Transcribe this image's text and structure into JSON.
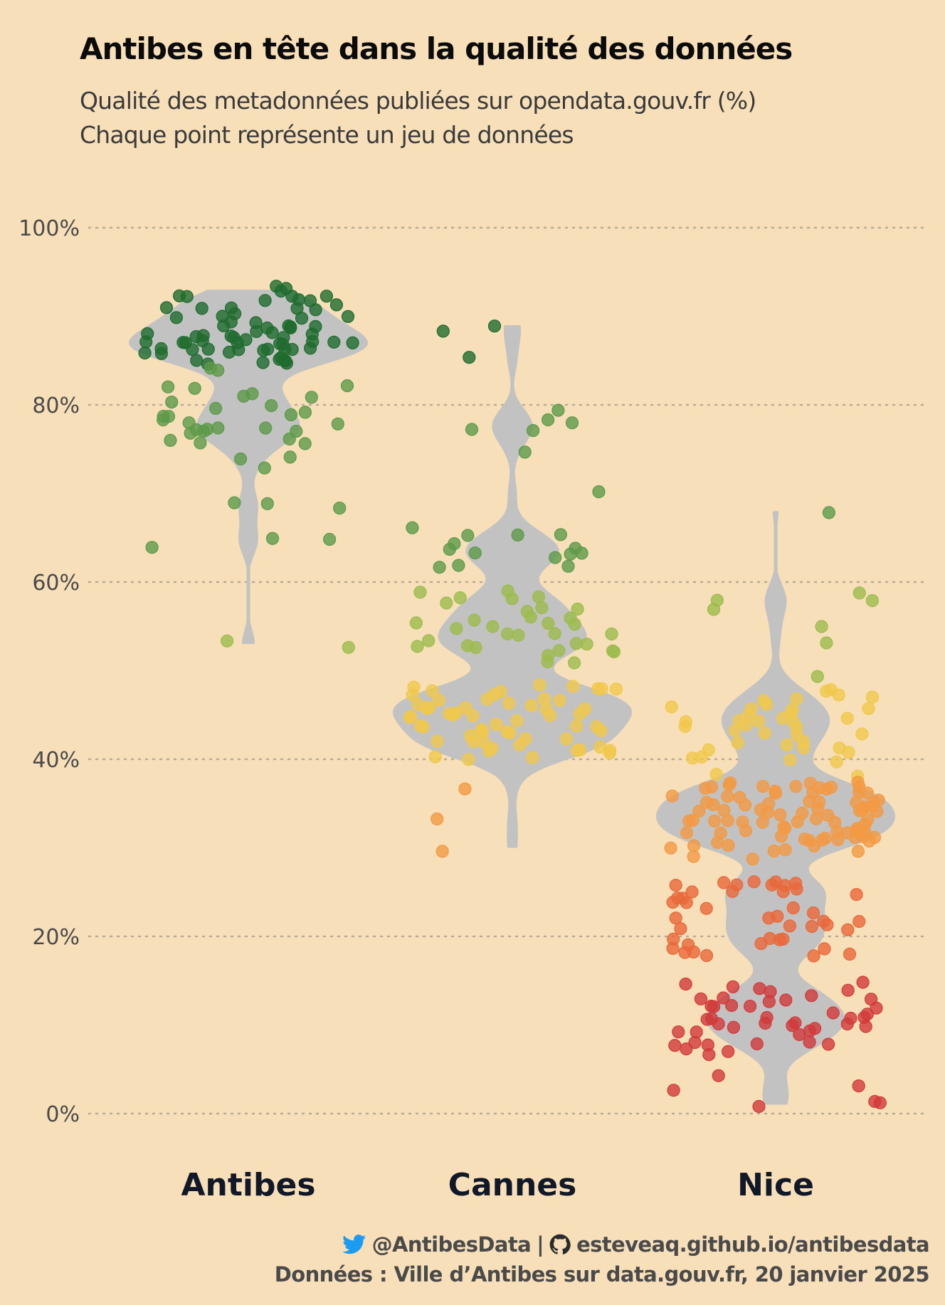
{
  "title": "Antibes en tête dans la qualité des données",
  "subtitle_line1": "Qualité des metadonnées publiées sur opendata.gouv.fr (%)",
  "subtitle_line2": "Chaque point représente un jeu de données",
  "footer": {
    "twitter_handle": "@AntibesData",
    "separator": "|",
    "github_url": "esteveaq.github.io/antibesdata",
    "source": "Données : Ville d’Antibes sur data.gouv.fr, 20 janvier 2025"
  },
  "colors": {
    "background": "#f7dfb9",
    "violin": "#c2c2c2",
    "grid": "#b8aa96",
    "dark_green": "#1f6b2e",
    "green": "#5c9a48",
    "yellow_green": "#9cbc4c",
    "yellow": "#f0c84c",
    "orange": "#f29a44",
    "red_orange": "#e8683a",
    "red": "#d13a3a",
    "twitter": "#1d9bf0"
  },
  "chart_data": {
    "type": "scatter",
    "ylim": [
      0,
      100
    ],
    "yticks": [
      "0%",
      "20%",
      "40%",
      "60%",
      "80%",
      "100%"
    ],
    "grid": true,
    "categories": [
      "Antibes",
      "Cannes",
      "Nice"
    ],
    "series": [
      {
        "category": "Antibes",
        "values": [
          93,
          93,
          93,
          92,
          92,
          92,
          92,
          92,
          92,
          92,
          91,
          91,
          91,
          91,
          91,
          91,
          90,
          90,
          90,
          90,
          90,
          89,
          89,
          89,
          89,
          89,
          89,
          89,
          89,
          88,
          88,
          88,
          88,
          88,
          88,
          88,
          88,
          88,
          87,
          87,
          87,
          87,
          87,
          87,
          87,
          87,
          87,
          87,
          87,
          86,
          86,
          86,
          86,
          86,
          86,
          86,
          86,
          86,
          86,
          86,
          86,
          85,
          85,
          85,
          85,
          85,
          85,
          85,
          85,
          84,
          84,
          82,
          82,
          82,
          81,
          81,
          81,
          80,
          80,
          80,
          79,
          79,
          79,
          79,
          78,
          78,
          78,
          77,
          77,
          77,
          77,
          77,
          77,
          77,
          76,
          76,
          76,
          76,
          74,
          74,
          73,
          69,
          69,
          68,
          65,
          65,
          64,
          53,
          53
        ]
      },
      {
        "category": "Cannes",
        "values": [
          89,
          88,
          85,
          79,
          78,
          78,
          77,
          77,
          75,
          70,
          66,
          65,
          65,
          65,
          64,
          64,
          64,
          63,
          63,
          63,
          63,
          62,
          62,
          62,
          59,
          59,
          58,
          58,
          58,
          58,
          57,
          57,
          57,
          56,
          56,
          56,
          55,
          55,
          55,
          55,
          55,
          54,
          54,
          54,
          54,
          53,
          53,
          53,
          53,
          53,
          53,
          52,
          52,
          52,
          52,
          51,
          51,
          48,
          48,
          48,
          48,
          48,
          48,
          48,
          48,
          47,
          47,
          47,
          47,
          47,
          47,
          46,
          46,
          46,
          46,
          46,
          46,
          46,
          46,
          45,
          45,
          45,
          45,
          45,
          45,
          45,
          45,
          44,
          44,
          44,
          44,
          44,
          44,
          43,
          43,
          43,
          43,
          43,
          43,
          42,
          42,
          42,
          42,
          42,
          42,
          41,
          41,
          41,
          41,
          41,
          41,
          41,
          40,
          40,
          40,
          37,
          33,
          30
        ]
      },
      {
        "category": "Nice",
        "values": [
          68,
          59,
          58,
          58,
          57,
          55,
          53,
          49,
          48,
          48,
          47,
          47,
          47,
          47,
          46,
          46,
          46,
          46,
          46,
          45,
          45,
          45,
          45,
          44,
          44,
          44,
          44,
          44,
          44,
          44,
          43,
          43,
          43,
          43,
          42,
          42,
          42,
          41,
          41,
          41,
          41,
          40,
          40,
          40,
          40,
          38,
          38,
          37,
          37,
          37,
          37,
          37,
          37,
          37,
          37,
          37,
          37,
          37,
          37,
          36,
          36,
          36,
          36,
          36,
          36,
          36,
          36,
          35,
          35,
          35,
          35,
          35,
          35,
          35,
          35,
          35,
          35,
          35,
          34,
          34,
          34,
          34,
          34,
          34,
          34,
          34,
          34,
          34,
          34,
          33,
          33,
          33,
          33,
          33,
          33,
          33,
          33,
          33,
          33,
          33,
          32,
          32,
          32,
          32,
          32,
          32,
          32,
          32,
          32,
          32,
          31,
          31,
          31,
          31,
          31,
          31,
          31,
          31,
          31,
          31,
          31,
          30,
          30,
          30,
          30,
          30,
          30,
          30,
          29,
          29,
          26,
          26,
          26,
          26,
          26,
          26,
          26,
          26,
          25,
          25,
          25,
          25,
          25,
          24,
          24,
          24,
          24,
          23,
          23,
          23,
          22,
          22,
          22,
          22,
          22,
          21,
          21,
          21,
          21,
          21,
          20,
          20,
          20,
          20,
          19,
          19,
          19,
          19,
          18,
          18,
          18,
          18,
          18,
          15,
          15,
          14,
          14,
          14,
          14,
          13,
          13,
          13,
          13,
          13,
          13,
          12,
          12,
          12,
          12,
          12,
          11,
          11,
          11,
          11,
          11,
          11,
          11,
          10,
          10,
          10,
          10,
          10,
          10,
          10,
          10,
          9,
          9,
          9,
          9,
          8,
          8,
          8,
          8,
          8,
          8,
          7,
          7,
          7,
          4,
          3,
          3,
          1,
          1,
          1
        ]
      }
    ],
    "color_bins": [
      {
        "min": 85,
        "color": "dark_green"
      },
      {
        "min": 60,
        "color": "green"
      },
      {
        "min": 49,
        "color": "yellow_green"
      },
      {
        "min": 38,
        "color": "yellow"
      },
      {
        "min": 27,
        "color": "orange"
      },
      {
        "min": 16,
        "color": "red_orange"
      },
      {
        "min": 0,
        "color": "red"
      }
    ]
  }
}
